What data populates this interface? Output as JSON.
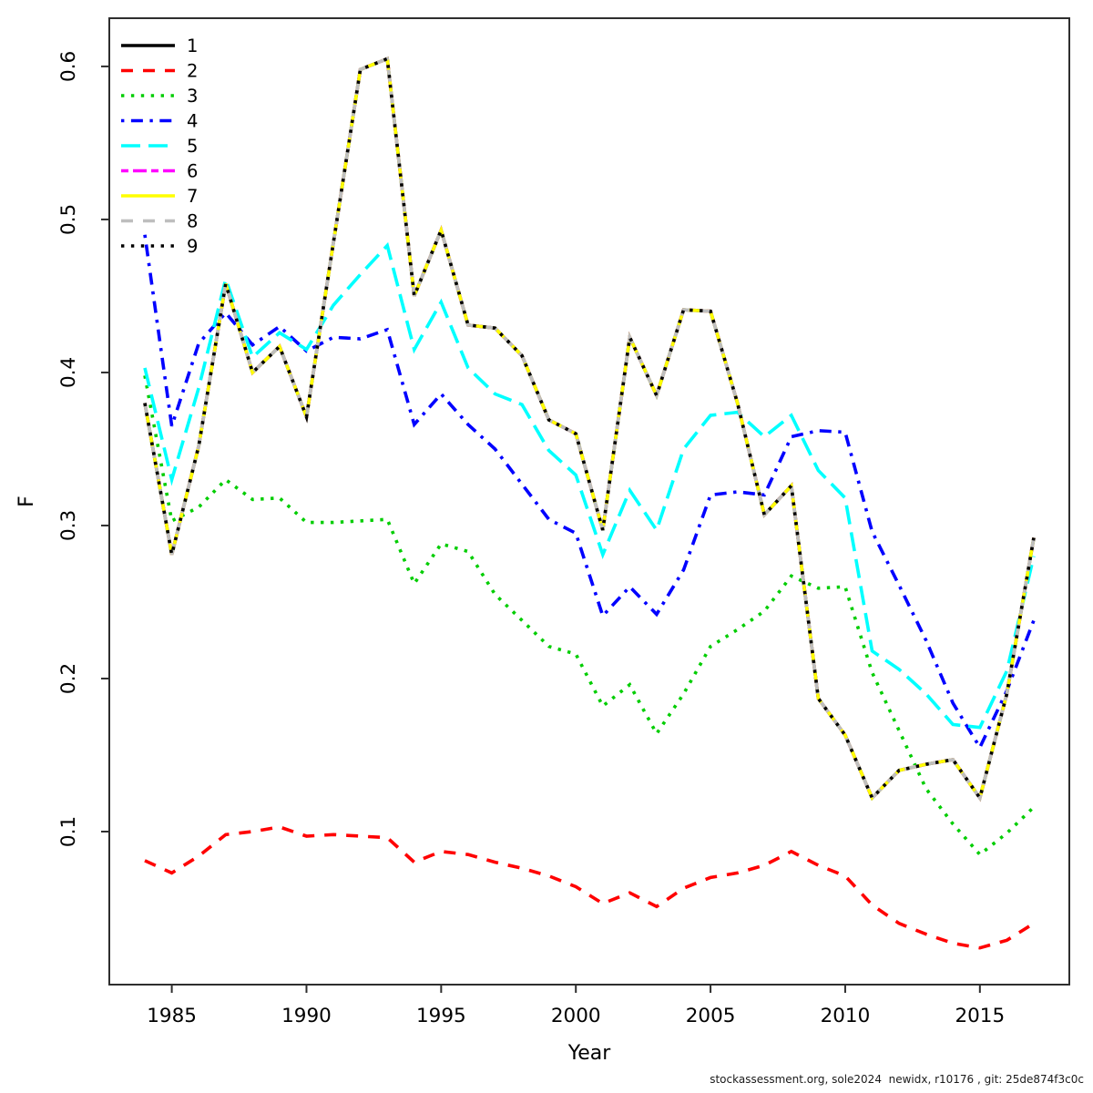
{
  "footer": {
    "text": "stockassessment.org, sole2024  newidx, r10176 , git: 25de874f3c0c"
  },
  "chart_data": {
    "type": "line",
    "title": "",
    "xlabel": "Year",
    "ylabel": "F",
    "grid": false,
    "legend_position": "top-left",
    "axis_color": "#2e2e2e",
    "tick_label_color": "#000000",
    "xlim": [
      1982.68,
      2018.32
    ],
    "ylim": [
      0,
      0.6315
    ],
    "x_ticks": [
      1985,
      1990,
      1995,
      2000,
      2005,
      2010,
      2015
    ],
    "y_ticks": [
      0.1,
      0.2,
      0.3,
      0.4,
      0.5,
      0.6
    ],
    "x": [
      1984,
      1985,
      1986,
      1987,
      1988,
      1989,
      1990,
      1991,
      1992,
      1993,
      1994,
      1995,
      1996,
      1997,
      1998,
      1999,
      2000,
      2001,
      2002,
      2003,
      2004,
      2005,
      2006,
      2007,
      2008,
      2009,
      2010,
      2011,
      2012,
      2013,
      2014,
      2015,
      2016,
      2017
    ],
    "series": [
      {
        "name": "1",
        "color": "#000000",
        "lty": "solid",
        "values": [
          0.38,
          0.281,
          0.352,
          0.458,
          0.4,
          0.417,
          0.371,
          0.485,
          0.598,
          0.605,
          0.45,
          0.493,
          0.431,
          0.429,
          0.411,
          0.369,
          0.36,
          0.297,
          0.423,
          0.385,
          0.441,
          0.44,
          0.38,
          0.307,
          0.326,
          0.187,
          0.163,
          0.122,
          0.14,
          0.144,
          0.147,
          0.122,
          0.19,
          0.292
        ]
      },
      {
        "name": "2",
        "color": "#FF0000",
        "lty": "dashed",
        "values": [
          0.081,
          0.073,
          0.084,
          0.098,
          0.1,
          0.103,
          0.097,
          0.098,
          0.097,
          0.096,
          0.08,
          0.087,
          0.085,
          0.08,
          0.076,
          0.071,
          0.064,
          0.053,
          0.06,
          0.051,
          0.063,
          0.07,
          0.073,
          0.078,
          0.087,
          0.078,
          0.071,
          0.052,
          0.04,
          0.033,
          0.027,
          0.024,
          0.029,
          0.04
        ]
      },
      {
        "name": "3",
        "color": "#00CD00",
        "lty": "dotted",
        "values": [
          0.398,
          0.303,
          0.312,
          0.33,
          0.317,
          0.318,
          0.302,
          0.302,
          0.303,
          0.304,
          0.262,
          0.288,
          0.283,
          0.255,
          0.238,
          0.221,
          0.216,
          0.182,
          0.196,
          0.164,
          0.19,
          0.221,
          0.232,
          0.244,
          0.267,
          0.259,
          0.26,
          0.204,
          0.166,
          0.128,
          0.105,
          0.085,
          0.099,
          0.116
        ]
      },
      {
        "name": "4",
        "color": "#0000FF",
        "lty": "dotdash",
        "values": [
          0.49,
          0.365,
          0.419,
          0.439,
          0.418,
          0.43,
          0.414,
          0.423,
          0.422,
          0.428,
          0.366,
          0.386,
          0.366,
          0.35,
          0.327,
          0.304,
          0.295,
          0.241,
          0.26,
          0.242,
          0.271,
          0.32,
          0.322,
          0.32,
          0.358,
          0.362,
          0.361,
          0.296,
          0.261,
          0.225,
          0.184,
          0.155,
          0.192,
          0.238
        ]
      },
      {
        "name": "5",
        "color": "#00FFFF",
        "lty": "longdash",
        "values": [
          0.403,
          0.33,
          0.39,
          0.461,
          0.41,
          0.426,
          0.415,
          0.444,
          0.464,
          0.483,
          0.415,
          0.446,
          0.403,
          0.386,
          0.379,
          0.349,
          0.333,
          0.281,
          0.323,
          0.297,
          0.35,
          0.372,
          0.374,
          0.358,
          0.372,
          0.336,
          0.318,
          0.218,
          0.206,
          0.19,
          0.17,
          0.168,
          0.205,
          0.28
        ]
      },
      {
        "name": "6",
        "color": "#FF00FF",
        "lty": "twodash",
        "values": [
          0.38,
          0.281,
          0.352,
          0.458,
          0.4,
          0.417,
          0.371,
          0.485,
          0.598,
          0.605,
          0.45,
          0.493,
          0.431,
          0.429,
          0.411,
          0.369,
          0.36,
          0.297,
          0.423,
          0.385,
          0.441,
          0.44,
          0.38,
          0.307,
          0.326,
          0.187,
          0.163,
          0.122,
          0.14,
          0.144,
          0.147,
          0.122,
          0.19,
          0.292
        ]
      },
      {
        "name": "7",
        "color": "#FFFF00",
        "lty": "solid",
        "values": [
          0.38,
          0.281,
          0.352,
          0.458,
          0.4,
          0.417,
          0.371,
          0.485,
          0.598,
          0.605,
          0.45,
          0.493,
          0.431,
          0.429,
          0.411,
          0.369,
          0.36,
          0.297,
          0.423,
          0.385,
          0.441,
          0.44,
          0.38,
          0.307,
          0.326,
          0.187,
          0.163,
          0.122,
          0.14,
          0.144,
          0.147,
          0.122,
          0.19,
          0.292
        ]
      },
      {
        "name": "8",
        "color": "#BEBEBE",
        "lty": "dashed",
        "values": [
          0.38,
          0.281,
          0.352,
          0.458,
          0.4,
          0.417,
          0.371,
          0.485,
          0.598,
          0.605,
          0.45,
          0.493,
          0.431,
          0.429,
          0.411,
          0.369,
          0.36,
          0.297,
          0.423,
          0.385,
          0.441,
          0.44,
          0.38,
          0.307,
          0.326,
          0.187,
          0.163,
          0.122,
          0.14,
          0.144,
          0.147,
          0.122,
          0.19,
          0.292
        ]
      },
      {
        "name": "9",
        "color": "#000000",
        "lty": "dotted",
        "values": [
          0.38,
          0.281,
          0.352,
          0.458,
          0.4,
          0.417,
          0.371,
          0.485,
          0.598,
          0.605,
          0.45,
          0.493,
          0.431,
          0.429,
          0.411,
          0.369,
          0.36,
          0.297,
          0.423,
          0.385,
          0.441,
          0.44,
          0.38,
          0.307,
          0.326,
          0.187,
          0.163,
          0.122,
          0.14,
          0.144,
          0.147,
          0.122,
          0.19,
          0.292
        ]
      }
    ]
  }
}
